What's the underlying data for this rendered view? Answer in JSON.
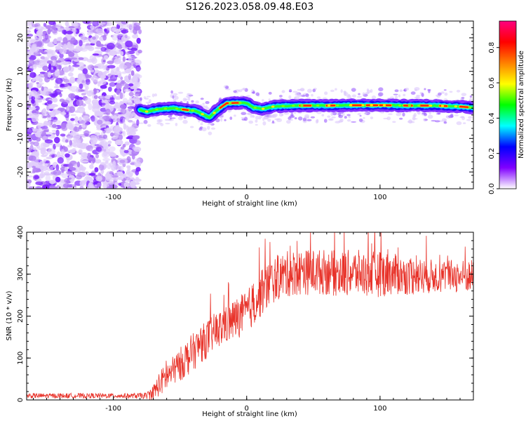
{
  "figure": {
    "title": "S126.2023.058.09.48.E03"
  },
  "chart_data": [
    {
      "type": "heatmap",
      "xlabel": "Height of straight line (km)",
      "ylabel": "Frequency (Hz)",
      "xlim": [
        -165,
        170
      ],
      "ylim": [
        -25,
        25
      ],
      "xticks": [
        -100,
        0,
        100
      ],
      "yticks": [
        -20,
        -10,
        0,
        10,
        20
      ],
      "grid": false,
      "colorbar": {
        "label": "Normalized spectral amplitude",
        "range": [
          0.0,
          0.95
        ],
        "ticks": [
          0.0,
          0.2,
          0.4,
          0.6,
          0.8
        ],
        "colors": [
          "#ffffff",
          "#8000ff",
          "#0000ff",
          "#00ffff",
          "#00ff00",
          "#ffff00",
          "#ff8000",
          "#ff0000",
          "#ff0080"
        ]
      },
      "ridge": {
        "name": "peak frequency",
        "x": [
          -80,
          -75,
          -65,
          -55,
          -45,
          -38,
          -32,
          -28,
          -22,
          -15,
          -8,
          0,
          5,
          12,
          20,
          30,
          40,
          60,
          80,
          100,
          120,
          140,
          160,
          170
        ],
        "y": [
          -1.5,
          -2.0,
          -1.2,
          -1.0,
          -1.5,
          -1.8,
          -3.0,
          -3.8,
          -1.5,
          0.5,
          0.6,
          0.6,
          -0.8,
          -1.2,
          -0.5,
          -0.3,
          -0.2,
          -0.2,
          -0.1,
          -0.1,
          -0.2,
          -0.2,
          -0.5,
          -0.8
        ]
      }
    },
    {
      "type": "line",
      "xlabel": "Height of straight line (km)",
      "ylabel": "SNR (10 * v/v)",
      "xlim": [
        -165,
        170
      ],
      "ylim": [
        0,
        400
      ],
      "xticks": [
        -100,
        0,
        100
      ],
      "yticks": [
        0,
        100,
        200,
        300,
        400
      ],
      "grid": false,
      "series": [
        {
          "color": "#e8332a",
          "x": [
            -165,
            -140,
            -110,
            -85,
            -75,
            -70,
            -65,
            -60,
            -55,
            -50,
            -45,
            -40,
            -35,
            -30,
            -25,
            -20,
            -15,
            -10,
            -5,
            0,
            5,
            10,
            15,
            20,
            25,
            30,
            40,
            50,
            60,
            70,
            80,
            90,
            100,
            110,
            120,
            130,
            140,
            150,
            160,
            170
          ],
          "y": [
            10,
            10,
            10,
            10,
            10,
            18,
            40,
            55,
            70,
            85,
            100,
            115,
            130,
            145,
            160,
            170,
            180,
            190,
            200,
            210,
            230,
            250,
            270,
            285,
            295,
            300,
            305,
            305,
            305,
            300,
            305,
            300,
            300,
            300,
            295,
            295,
            295,
            295,
            295,
            295
          ],
          "noise_amplitude": [
            6,
            6,
            6,
            6,
            8,
            20,
            30,
            35,
            35,
            40,
            45,
            45,
            45,
            45,
            45,
            45,
            45,
            50,
            50,
            50,
            55,
            55,
            55,
            55,
            55,
            55,
            55,
            55,
            55,
            55,
            55,
            55,
            55,
            50,
            45,
            45,
            40,
            40,
            40,
            40
          ]
        }
      ]
    }
  ]
}
